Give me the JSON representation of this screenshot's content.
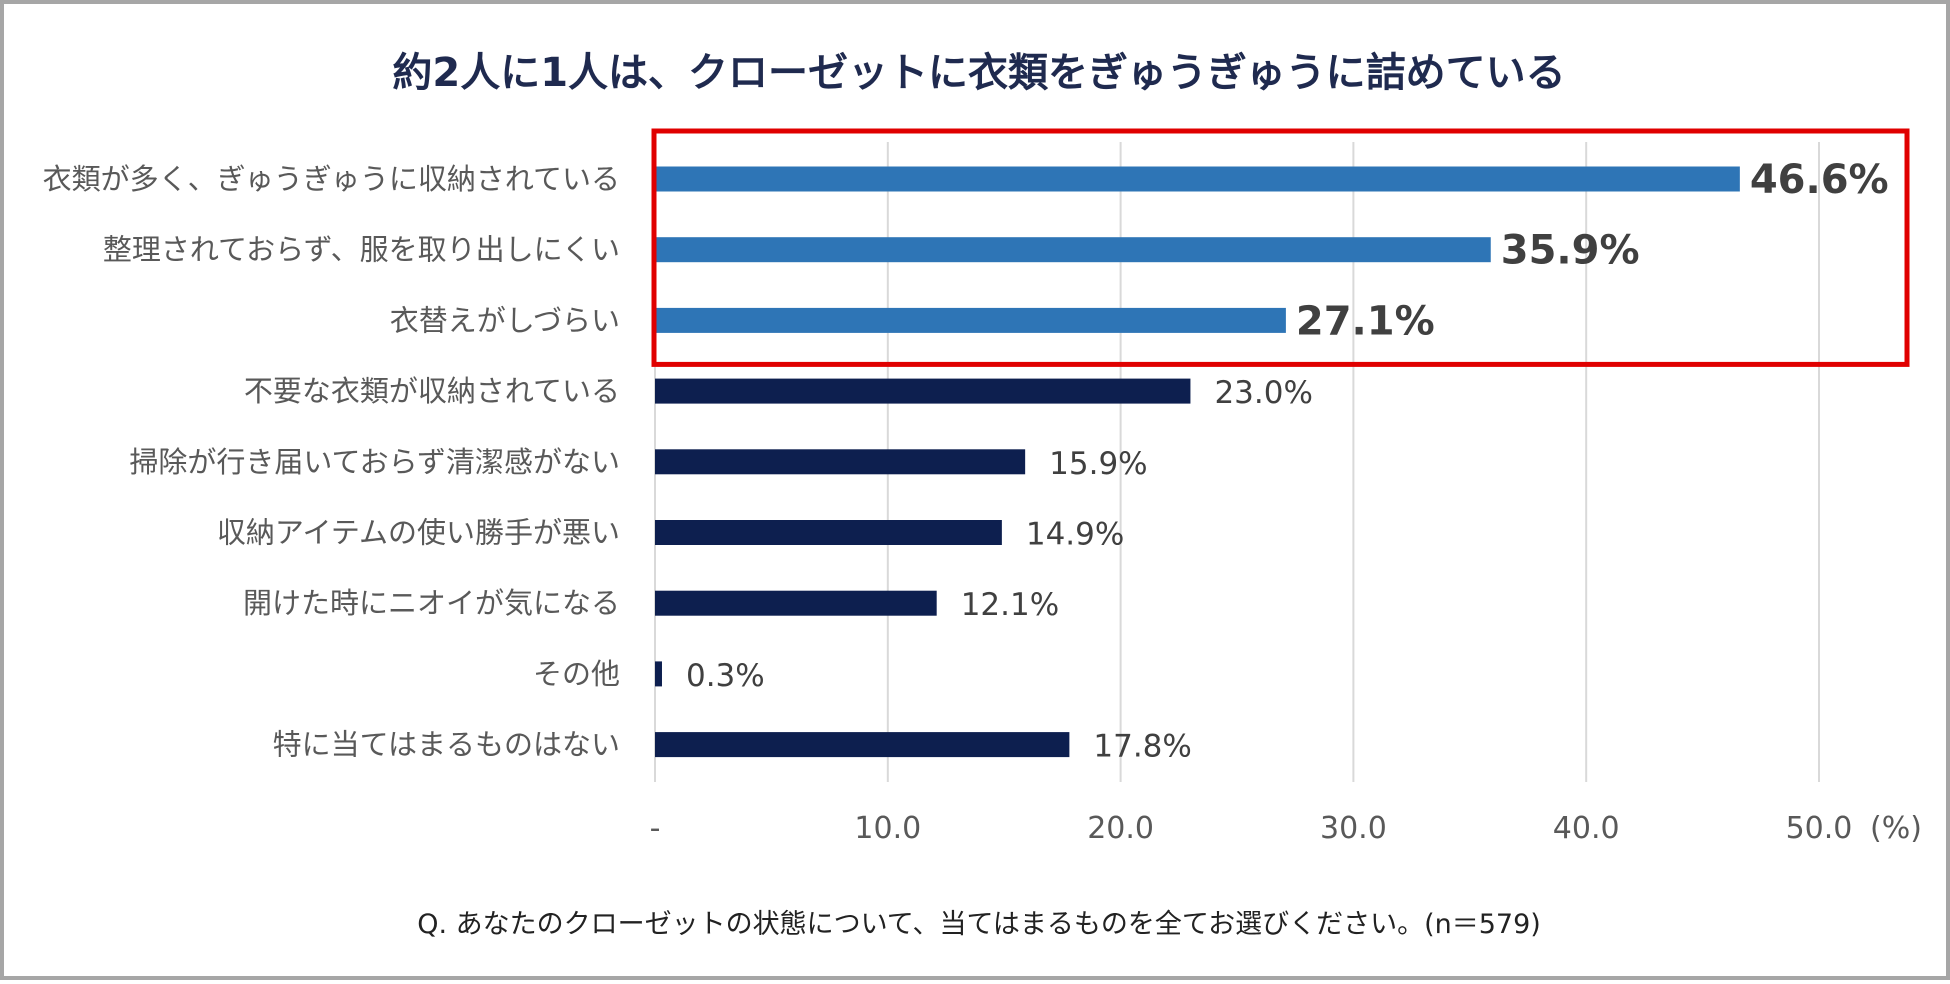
{
  "title": "約2人に1人は、クローゼットに衣類をぎゅうぎゅうに詰めている",
  "footnote": "Q. あなたのクローゼットの状態について、当てはまるものを全てお選びください。(n＝579)",
  "colors": {
    "highlight_bar": "#2e75b6",
    "normal_bar": "#0d1f4f",
    "highlight_box": "#e00000",
    "grid": "#d9d9d9",
    "title": "#1f2a4f"
  },
  "chart_data": {
    "type": "bar",
    "orientation": "horizontal",
    "title": "約2人に1人は、クローゼットに衣類をぎゅうぎゅうに詰めている",
    "xlabel": "",
    "ylabel": "",
    "unit_label": "(%)",
    "xlim": [
      0,
      50
    ],
    "ticks": [
      0,
      10,
      20,
      30,
      40,
      50
    ],
    "tick_labels": [
      "-",
      "10.0",
      "20.0",
      "30.0",
      "40.0",
      "50.0"
    ],
    "grid": true,
    "categories": [
      "衣類が多く、ぎゅうぎゅうに収納されている",
      "整理されておらず、服を取り出しにくい",
      "衣替えがしづらい",
      "不要な衣類が収納されている",
      "掃除が行き届いておらず清潔感がない",
      "収納アイテムの使い勝手が悪い",
      "開けた時にニオイが気になる",
      "その他",
      "特に当てはまるものはない"
    ],
    "values": [
      46.6,
      35.9,
      27.1,
      23.0,
      15.9,
      14.9,
      12.1,
      0.3,
      17.8
    ],
    "value_labels": [
      "46.6%",
      "35.9%",
      "27.1%",
      "23.0%",
      "15.9%",
      "14.9%",
      "12.1%",
      "0.3%",
      "17.8%"
    ],
    "highlighted": [
      true,
      true,
      true,
      false,
      false,
      false,
      false,
      false,
      false
    ]
  }
}
